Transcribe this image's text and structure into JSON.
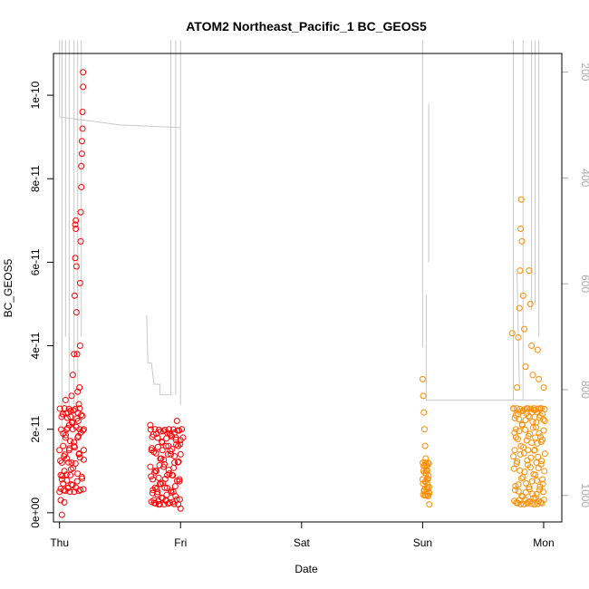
{
  "chart_data": {
    "type": "scatter",
    "title": "ATOM2 Northeast_Pacific_1 BC_GEOS5",
    "xlabel": "Date",
    "ylabel": "BC_GEOS5",
    "x_ticks": [
      "Thu",
      "Fri",
      "Sat",
      "Sun",
      "Mon"
    ],
    "xlim": [
      -0.05,
      4.15
    ],
    "ylim": [
      -2.2e-12,
      1.1e-10
    ],
    "y_ticks": [
      0,
      2e-11,
      4e-11,
      6e-11,
      8e-11,
      1e-10
    ],
    "y_tick_labels": [
      "0e+00",
      "2e-11",
      "4e-11",
      "6e-11",
      "8e-11",
      "1e-10"
    ],
    "y2_ticks": [
      200,
      400,
      600,
      800,
      1000
    ],
    "y2_range": [
      165,
      1050
    ],
    "y2_inverted": true,
    "colors": {
      "series1": "#ff0000",
      "series2": "#ff8c00",
      "pressure": "#c8c8c8"
    },
    "series": [
      {
        "color": "#ff0000",
        "points": [
          [
            0.0,
            5e-12
          ],
          [
            0.01,
            9e-12
          ],
          [
            0.01,
            3e-12
          ],
          [
            0.02,
            1.2e-11
          ],
          [
            0.02,
            -5e-13
          ],
          [
            0.03,
            7e-12
          ],
          [
            0.03,
            1.6e-11
          ],
          [
            0.04,
            2.5e-12
          ],
          [
            0.04,
            1e-11
          ],
          [
            0.05,
            1.8e-11
          ],
          [
            0.05,
            2.7e-11
          ],
          [
            0.06,
            2e-11
          ],
          [
            0.06,
            1.3e-11
          ],
          [
            0.07,
            2.4e-11
          ],
          [
            0.07,
            6e-12
          ],
          [
            0.08,
            2.1e-11
          ],
          [
            0.08,
            1.5e-11
          ],
          [
            0.09,
            2.3e-11
          ],
          [
            0.09,
            9e-12
          ],
          [
            0.1,
            2.8e-11
          ],
          [
            0.1,
            1.2e-11
          ],
          [
            0.11,
            3.3e-11
          ],
          [
            0.11,
            2e-11
          ],
          [
            0.12,
            3.8e-11
          ],
          [
            0.12,
            1.6e-11
          ],
          [
            0.125,
            5.2e-11
          ],
          [
            0.13,
            6.1e-11
          ],
          [
            0.13,
            6.9e-11
          ],
          [
            0.135,
            7e-11
          ],
          [
            0.135,
            6.8e-11
          ],
          [
            0.14,
            5.9e-11
          ],
          [
            0.14,
            4.8e-11
          ],
          [
            0.145,
            3.8e-11
          ],
          [
            0.15,
            2.9e-11
          ],
          [
            0.15,
            1.8e-11
          ],
          [
            0.155,
            2.2e-11
          ],
          [
            0.16,
            2.6e-11
          ],
          [
            0.16,
            1.4e-11
          ],
          [
            0.165,
            3e-11
          ],
          [
            0.165,
            2e-11
          ],
          [
            0.17,
            4e-11
          ],
          [
            0.17,
            5.5e-11
          ],
          [
            0.175,
            6.5e-11
          ],
          [
            0.175,
            7.2e-11
          ],
          [
            0.18,
            7.8e-11
          ],
          [
            0.18,
            8.3e-11
          ],
          [
            0.185,
            8.6e-11
          ],
          [
            0.185,
            8.9e-11
          ],
          [
            0.19,
            9.2e-11
          ],
          [
            0.19,
            9.6e-11
          ],
          [
            0.195,
            1.02e-10
          ],
          [
            0.195,
            1.055e-10
          ],
          [
            0.2,
            2e-11
          ],
          [
            0.2,
            1.5e-11
          ],
          [
            0.75,
            2.1e-11
          ],
          [
            0.76,
            1.5e-11
          ],
          [
            0.77,
            8e-12
          ],
          [
            0.78,
            3e-12
          ],
          [
            0.79,
            6e-12
          ],
          [
            0.8,
            1e-11
          ],
          [
            0.81,
            5e-12
          ],
          [
            0.82,
            2e-12
          ],
          [
            0.83,
            7e-12
          ],
          [
            0.84,
            1.3e-11
          ],
          [
            0.85,
            1.5e-11
          ],
          [
            0.86,
            1.1e-11
          ],
          [
            0.87,
            6e-12
          ],
          [
            0.88,
            3e-12
          ],
          [
            0.89,
            9e-12
          ],
          [
            0.9,
            1.6e-11
          ],
          [
            0.91,
            1.9e-11
          ],
          [
            0.92,
            1.4e-11
          ],
          [
            0.93,
            9e-12
          ],
          [
            0.94,
            5e-12
          ],
          [
            0.95,
            1.2e-11
          ],
          [
            0.96,
            1.8e-11
          ],
          [
            0.97,
            2.2e-11
          ],
          [
            0.98,
            1.6e-11
          ],
          [
            0.99,
            8e-12
          ],
          [
            1.0,
            1e-12
          ],
          [
            1.0,
            1.4e-11
          ],
          [
            1.01,
            2e-11
          ],
          [
            1.02,
            1.8e-11
          ]
        ]
      },
      {
        "color": "#ff8c00",
        "points": [
          [
            3.0,
            3.2e-11
          ],
          [
            3.005,
            2.8e-11
          ],
          [
            3.01,
            2.4e-11
          ],
          [
            3.015,
            2e-11
          ],
          [
            3.02,
            1.6e-11
          ],
          [
            3.025,
            1.3e-11
          ],
          [
            3.03,
            1e-11
          ],
          [
            3.035,
            8e-12
          ],
          [
            3.04,
            6e-12
          ],
          [
            3.045,
            4e-12
          ],
          [
            3.05,
            5e-12
          ],
          [
            3.055,
            2e-12
          ],
          [
            3.74,
            4.3e-11
          ],
          [
            3.75,
            2.5e-11
          ],
          [
            3.76,
            1.5e-11
          ],
          [
            3.77,
            2e-11
          ],
          [
            3.78,
            3e-11
          ],
          [
            3.79,
            4.2e-11
          ],
          [
            3.8,
            4.9e-11
          ],
          [
            3.805,
            5.8e-11
          ],
          [
            3.81,
            6.8e-11
          ],
          [
            3.815,
            7.5e-11
          ],
          [
            3.82,
            6.5e-11
          ],
          [
            3.83,
            5.2e-11
          ],
          [
            3.84,
            4.4e-11
          ],
          [
            3.85,
            3.5e-11
          ],
          [
            3.86,
            2.5e-11
          ],
          [
            3.87,
            1.5e-11
          ],
          [
            3.88,
            5.8e-11
          ],
          [
            3.89,
            5e-11
          ],
          [
            3.9,
            4e-11
          ],
          [
            3.91,
            3.3e-11
          ],
          [
            3.92,
            2.5e-11
          ],
          [
            3.93,
            1.8e-11
          ],
          [
            3.94,
            1.2e-11
          ],
          [
            3.95,
            3.9e-11
          ],
          [
            3.96,
            3.2e-11
          ],
          [
            3.97,
            2.5e-11
          ],
          [
            3.98,
            1.7e-11
          ],
          [
            3.99,
            8e-12
          ],
          [
            4.0,
            3e-11
          ],
          [
            4.01,
            2.2e-11
          ]
        ]
      }
    ]
  }
}
